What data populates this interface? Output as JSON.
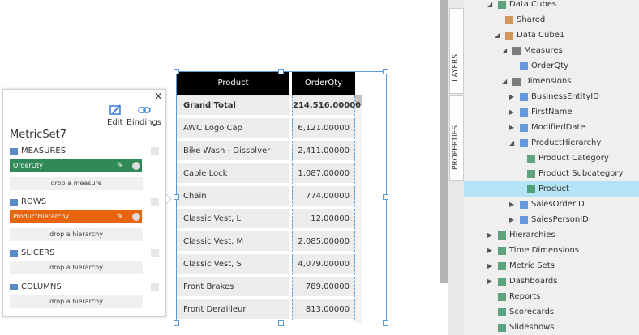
{
  "panel": {
    "title": "MetricSet7",
    "edit": "Edit",
    "bindings": "Bindings",
    "sections": [
      {
        "label": "MEASURES",
        "item": "OrderQty",
        "item_color": "#2f8a57",
        "drop": "drop a measure"
      },
      {
        "label": "ROWS",
        "item": "ProductHierarchy",
        "item_color": "#e8650f",
        "drop": "drop a hierarchy"
      },
      {
        "label": "SLICERS",
        "drop": "drop a hierarchy"
      },
      {
        "label": "COLUMNS",
        "drop": "drop a hierarchy"
      }
    ]
  },
  "table": {
    "headers": [
      "Product",
      "OrderQty"
    ],
    "rows": [
      [
        "Grand Total",
        "214,516.00000"
      ],
      [
        "AWC Logo Cap",
        "6,121.00000"
      ],
      [
        "Bike Wash - Dissolver",
        "2,411.00000"
      ],
      [
        "Cable Lock",
        "1,087.00000"
      ],
      [
        "Chain",
        "774.00000"
      ],
      [
        "Classic Vest, L",
        "12.00000"
      ],
      [
        "Classic Vest, M",
        "2,085.00000"
      ],
      [
        "Classic Vest, S",
        "4,079.00000"
      ],
      [
        "Front Brakes",
        "789.00000"
      ],
      [
        "Front Derailleur",
        "813.00000"
      ]
    ]
  },
  "tabs": [
    "LAYERS",
    "PROPERTIES"
  ],
  "tree": [
    {
      "label": "Data Cubes",
      "children": [
        {
          "label": "Shared"
        },
        {
          "label": "Data Cube1",
          "children": [
            {
              "label": "Measures",
              "children": [
                {
                  "label": "OrderQty"
                }
              ]
            },
            {
              "label": "Dimensions",
              "children": [
                {
                  "label": "BusinessEntityID",
                  "collapsed": true
                },
                {
                  "label": "FirstName",
                  "collapsed": true
                },
                {
                  "label": "ModifiedDate",
                  "collapsed": true
                },
                {
                  "label": "ProductHierarchy",
                  "children": [
                    {
                      "label": "Product Category"
                    },
                    {
                      "label": "Product Subcategory"
                    },
                    {
                      "label": "Product",
                      "selected": true
                    }
                  ]
                },
                {
                  "label": "SalesOrderID",
                  "collapsed": true
                },
                {
                  "label": "SalesPersonID",
                  "collapsed": true
                }
              ]
            }
          ]
        }
      ]
    },
    {
      "label": "Hierarchies",
      "collapsed": true
    },
    {
      "label": "Time Dimensions",
      "collapsed": true
    },
    {
      "label": "Metric Sets",
      "collapsed": true
    },
    {
      "label": "Dashboards",
      "collapsed": true
    },
    {
      "label": "Reports"
    },
    {
      "label": "Scorecards"
    },
    {
      "label": "Slideshows"
    }
  ]
}
